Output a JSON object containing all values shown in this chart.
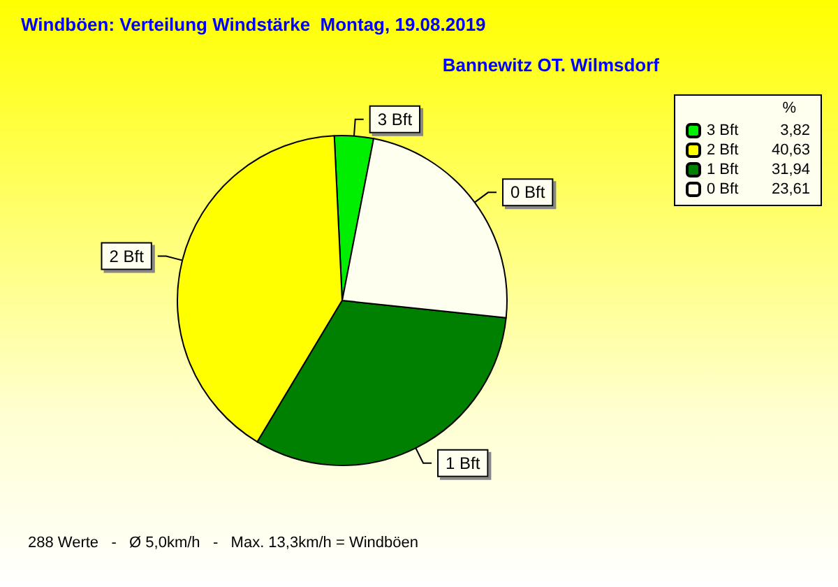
{
  "chart_data": {
    "type": "pie",
    "title": "Windböen: Verteilung Windstärke  Montag, 19.08.2019",
    "subtitle": "Bannewitz OT. Wilmsdorf",
    "categories": [
      "3 Bft",
      "2 Bft",
      "1 Bft",
      "0 Bft"
    ],
    "values": [
      3.82,
      40.63,
      31.94,
      23.61
    ],
    "value_labels": [
      "3,82",
      "40,63",
      "31,94",
      "23,61"
    ],
    "colors": [
      "#00ee00",
      "#ffff00",
      "#008000",
      "#fffff0"
    ],
    "legend": "top right",
    "legend_title": "%",
    "annotations": [
      "288 Werte   -   Ø 5,0km/h   -   Max. 13,3km/h = Windböen"
    ]
  }
}
